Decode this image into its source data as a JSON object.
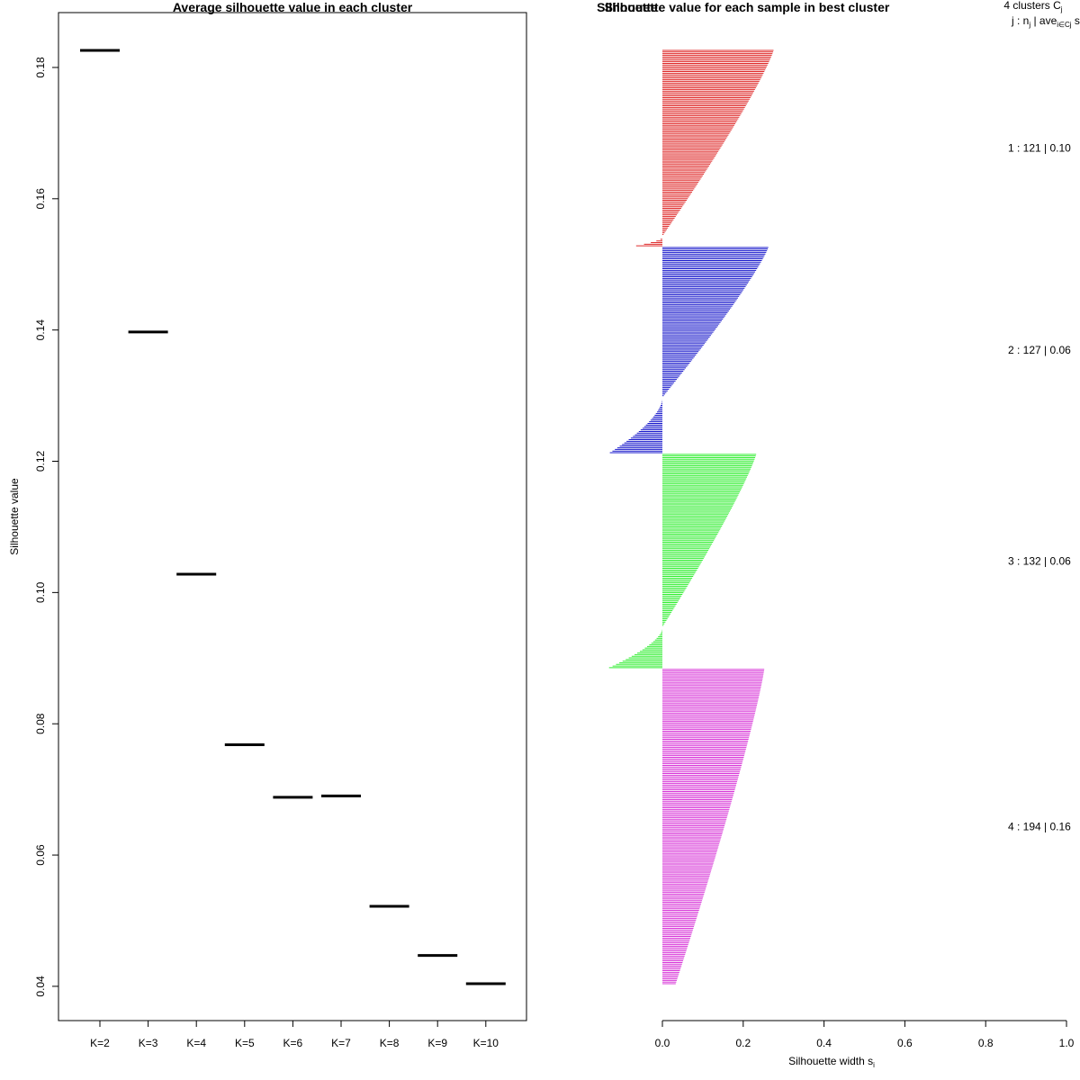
{
  "chart_data": [
    {
      "type": "scatter",
      "title": "Average silhouette value in each cluster",
      "xlabel": "",
      "ylabel": "Silhouette value",
      "categories": [
        "K=2",
        "K=3",
        "K=4",
        "K=5",
        "K=6",
        "K=7",
        "K=8",
        "K=9",
        "K=10"
      ],
      "values": [
        0.1826,
        0.1397,
        0.1028,
        0.0768,
        0.0688,
        0.069,
        0.0522,
        0.0447,
        0.0404
      ],
      "ylim": [
        0.0404,
        0.1826
      ],
      "yticks": [
        0.04,
        0.06,
        0.08,
        0.1,
        0.12,
        0.14,
        0.16,
        0.18
      ],
      "ytick_labels": [
        "0.04",
        "0.06",
        "0.08",
        "0.10",
        "0.12",
        "0.14",
        "0.16",
        "0.18"
      ],
      "marker": "horizontal-segment",
      "color": "#000000"
    },
    {
      "type": "bar",
      "orientation": "horizontal",
      "title": "Silhouette value for each sample in best cluster",
      "overlay_title": "Silhouette",
      "xlabel": "Silhouette width s",
      "xlabel_sub": "i",
      "xlim": [
        0,
        1
      ],
      "xticks": [
        0.0,
        0.2,
        0.4,
        0.6,
        0.8,
        1.0
      ],
      "xtick_labels": [
        "0.0",
        "0.2",
        "0.4",
        "0.6",
        "0.8",
        "1.0"
      ],
      "legend_header_line1": "4  clusters  C",
      "legend_header_line1_sub": "j",
      "legend_header_line2_a": "j :  n",
      "legend_header_line2_sub": "j",
      "legend_header_line2_b": " | ave",
      "legend_header_line2_sub2": "i∈Cj",
      "legend_header_line2_c": "  s",
      "clusters": [
        {
          "id": 1,
          "n": 121,
          "label": "1 :  121  |  0.10",
          "color": "#DF2B2B",
          "max": 0.275,
          "min": -0.065,
          "neg_frac": 0.05
        },
        {
          "id": 2,
          "n": 127,
          "label": "2 :  127  |  0.06",
          "color": "#1A1ACC",
          "max": 0.262,
          "min": -0.13,
          "neg_frac": 0.27
        },
        {
          "id": 3,
          "n": 132,
          "label": "3 :  132  |  0.06",
          "color": "#33EE33",
          "max": 0.232,
          "min": -0.132,
          "neg_frac": 0.19
        },
        {
          "id": 4,
          "n": 194,
          "label": "4 :  194  |  0.16",
          "color": "#D838D8",
          "max": 0.252,
          "min": 0.033,
          "neg_frac": 0.0
        }
      ]
    }
  ]
}
